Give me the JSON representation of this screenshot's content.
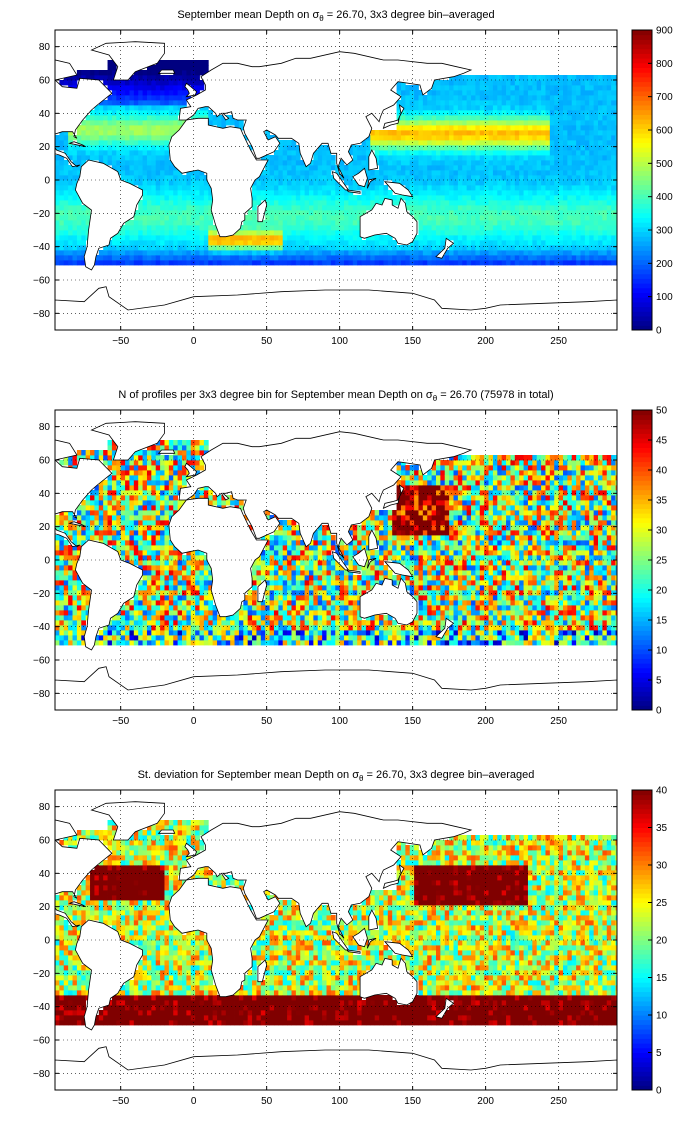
{
  "chart_data": [
    {
      "type": "heatmap",
      "title_main": "September mean Depth on σ",
      "title_sub": "θ",
      "title_rest": " = 26.70, 3x3 degree bin–averaged",
      "xlim": [
        -95,
        290
      ],
      "ylim": [
        -90,
        90
      ],
      "xticks": [
        -50,
        0,
        50,
        100,
        150,
        200,
        250
      ],
      "yticks": [
        -80,
        -60,
        -40,
        -20,
        0,
        20,
        40,
        60,
        80
      ],
      "colorbar": {
        "min": 0,
        "max": 900,
        "ticks": [
          0,
          100,
          200,
          300,
          400,
          500,
          600,
          700,
          800,
          900
        ]
      },
      "colormap": "jet",
      "grid": true,
      "bin_size_deg": 3,
      "field": "depth"
    },
    {
      "type": "heatmap",
      "title_main": "N of profiles per 3x3 degree bin for September mean Depth on σ",
      "title_sub": "θ",
      "title_rest": " = 26.70 (75978 in total)",
      "xlim": [
        -95,
        290
      ],
      "ylim": [
        -90,
        90
      ],
      "xticks": [
        -50,
        0,
        50,
        100,
        150,
        200,
        250
      ],
      "yticks": [
        -80,
        -60,
        -40,
        -20,
        0,
        20,
        40,
        60,
        80
      ],
      "colorbar": {
        "min": 0,
        "max": 50,
        "ticks": [
          0,
          5,
          10,
          15,
          20,
          25,
          30,
          35,
          40,
          45,
          50
        ]
      },
      "colormap": "jet",
      "grid": true,
      "bin_size_deg": 3,
      "field": "count"
    },
    {
      "type": "heatmap",
      "title_main": "St. deviation for September mean Depth on σ",
      "title_sub": "θ",
      "title_rest": " = 26.70, 3x3 degree bin–averaged",
      "xlim": [
        -95,
        290
      ],
      "ylim": [
        -90,
        90
      ],
      "xticks": [
        -50,
        0,
        50,
        100,
        150,
        200,
        250
      ],
      "yticks": [
        -80,
        -60,
        -40,
        -20,
        0,
        20,
        40,
        60,
        80
      ],
      "colorbar": {
        "min": 0,
        "max": 40,
        "ticks": [
          0,
          5,
          10,
          15,
          20,
          25,
          30,
          35,
          40
        ]
      },
      "colormap": "jet",
      "grid": true,
      "bin_size_deg": 3,
      "field": "std"
    }
  ]
}
